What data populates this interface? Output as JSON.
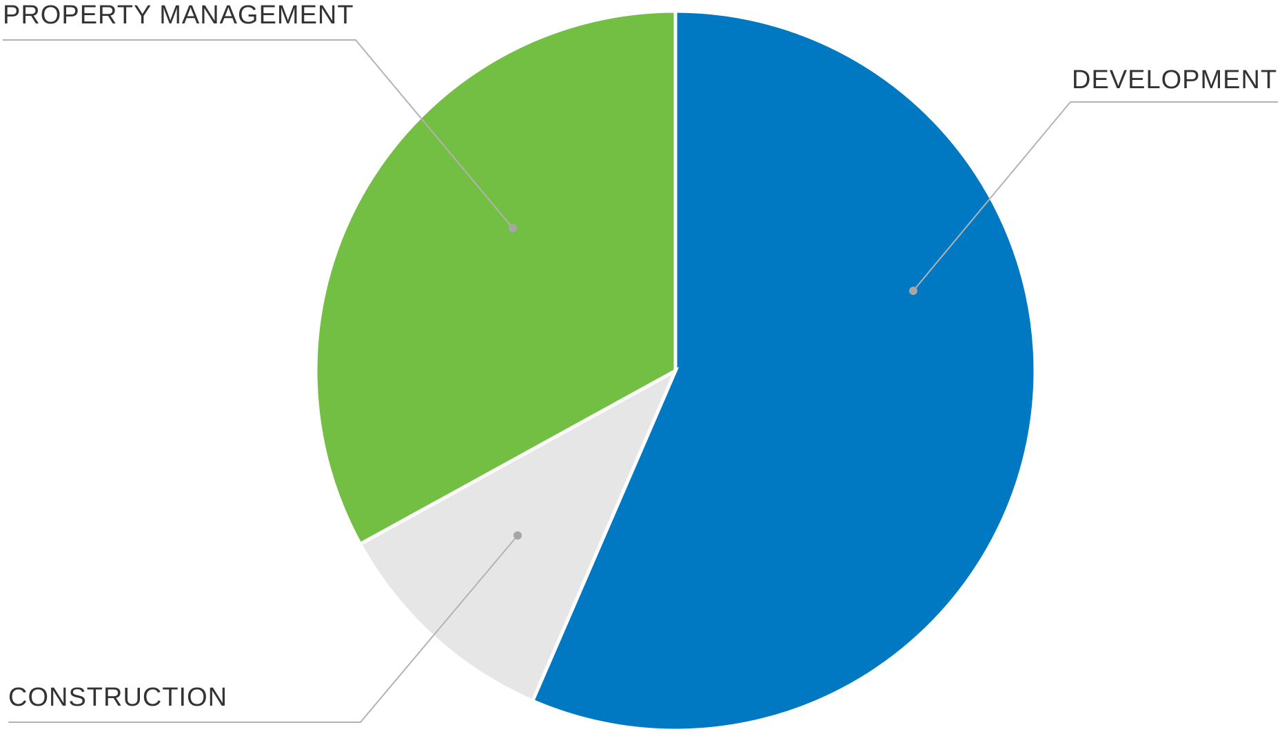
{
  "chart_data": {
    "type": "pie",
    "title": "",
    "start_angle_deg": 0,
    "direction": "clockwise",
    "slices": [
      {
        "label": "DEVELOPMENT",
        "value": 56.5,
        "color": "#0079c2"
      },
      {
        "label": "CONSTRUCTION",
        "value": 10.5,
        "color": "#e6e6e6"
      },
      {
        "label": "PROPERTY MANAGEMENT",
        "value": 33.0,
        "color": "#72bf44"
      }
    ],
    "legend": "none",
    "labels": "outside-with-leader-lines"
  }
}
